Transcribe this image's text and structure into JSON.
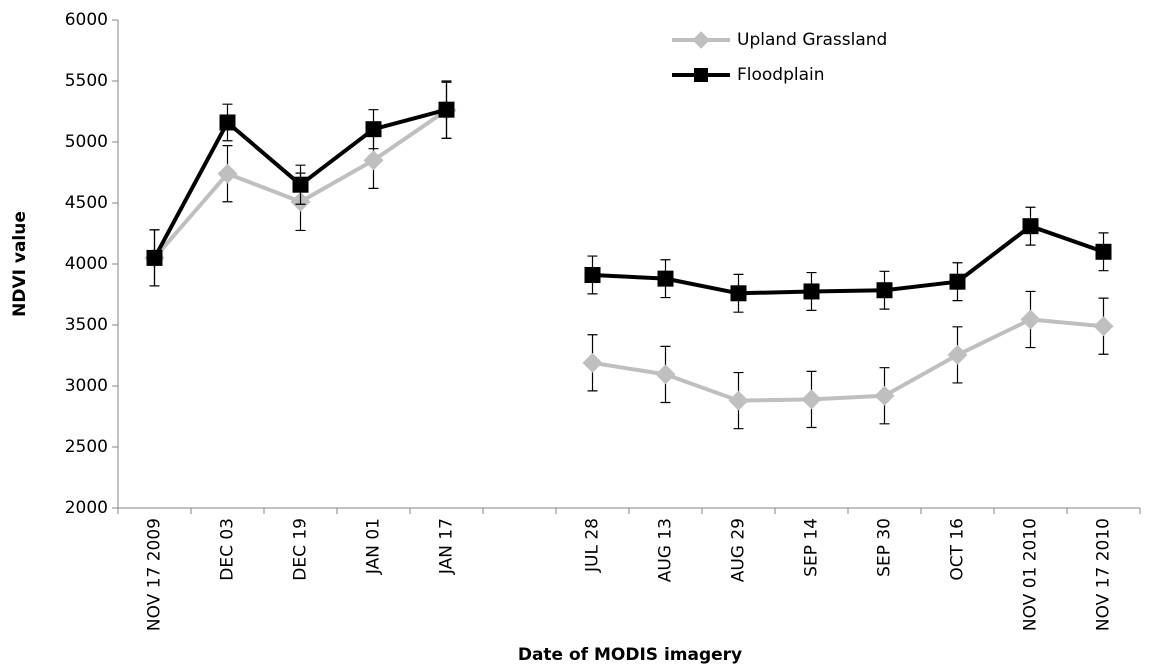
{
  "chart_data": {
    "type": "line",
    "x_label": "Date of MODIS imagery",
    "y_label": "NDVI value",
    "categories": [
      "NOV 17 2009",
      "DEC 03",
      "DEC 19",
      "JAN 01",
      "JAN 17",
      null,
      "JUL 28",
      "AUG 13",
      "AUG 29",
      "SEP 14",
      "SEP 30",
      "OCT 16",
      "NOV 01 2010",
      "NOV 17 2010"
    ],
    "series": [
      {
        "name": "Upland Grassland",
        "color": "#bfbfbf",
        "marker": "diamond",
        "values": [
          4050,
          4740,
          4510,
          4850,
          5260,
          null,
          3190,
          3095,
          2880,
          2890,
          2920,
          3255,
          3545,
          3490
        ],
        "errors": [
          230,
          230,
          235,
          230,
          230,
          null,
          230,
          230,
          230,
          230,
          230,
          230,
          230,
          230
        ]
      },
      {
        "name": "Floodplain",
        "color": "#000000",
        "marker": "square",
        "values": [
          4050,
          5160,
          4650,
          5105,
          5265,
          null,
          3910,
          3880,
          3760,
          3775,
          3785,
          3855,
          4310,
          4100
        ],
        "errors": [
          230,
          150,
          160,
          160,
          235,
          null,
          155,
          155,
          155,
          155,
          155,
          155,
          155,
          155
        ]
      }
    ],
    "ylim": [
      2000,
      6000
    ],
    "yticks": [
      2000,
      2500,
      3000,
      3500,
      4000,
      4500,
      5000,
      5500,
      6000
    ],
    "grid": false,
    "legend": "top-right"
  }
}
